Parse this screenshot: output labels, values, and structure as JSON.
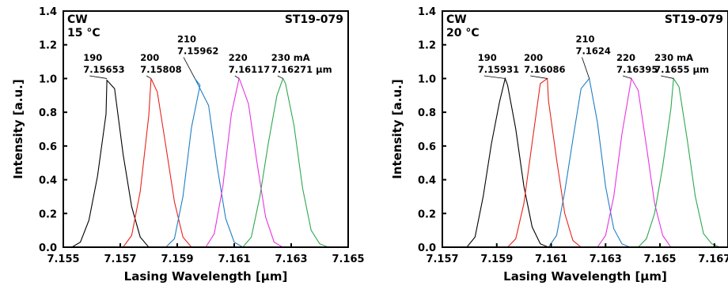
{
  "chart_data": [
    {
      "type": "line",
      "corner_left": [
        "CW",
        "15 °C"
      ],
      "corner_right": "ST19-079",
      "xlabel": "Lasing Wavelength [μm]",
      "ylabel": "Intensity  [a.u.]",
      "xlim": [
        7.155,
        7.165
      ],
      "ylim": [
        0.0,
        1.4
      ],
      "xticks": [
        "7.155",
        "7.157",
        "7.159",
        "7.161",
        "7.163",
        "7.165"
      ],
      "yticks": [
        "0.0",
        "0.2",
        "0.4",
        "0.6",
        "0.8",
        "1.0",
        "1.2",
        "1.4"
      ],
      "grid": false,
      "series": [
        {
          "color": "#000000",
          "peak_x": 7.15653,
          "points": [
            [
              7.155,
              0.0
            ],
            [
              7.1553,
              0.0
            ],
            [
              7.1556,
              0.03
            ],
            [
              7.1559,
              0.16
            ],
            [
              7.1562,
              0.42
            ],
            [
              7.1565,
              0.79
            ],
            [
              7.15653,
              0.99
            ],
            [
              7.1568,
              0.94
            ],
            [
              7.1571,
              0.55
            ],
            [
              7.1574,
              0.24
            ],
            [
              7.1577,
              0.06
            ],
            [
              7.158,
              0.0
            ],
            [
              7.165,
              0.0
            ]
          ]
        },
        {
          "color": "#e8231a",
          "peak_x": 7.15808,
          "points": [
            [
              7.155,
              0.0
            ],
            [
              7.1571,
              0.0
            ],
            [
              7.1574,
              0.07
            ],
            [
              7.1577,
              0.33
            ],
            [
              7.158,
              0.78
            ],
            [
              7.15808,
              1.0
            ],
            [
              7.1583,
              0.92
            ],
            [
              7.1586,
              0.6
            ],
            [
              7.1589,
              0.27
            ],
            [
              7.1592,
              0.06
            ],
            [
              7.1595,
              0.0
            ],
            [
              7.165,
              0.0
            ]
          ]
        },
        {
          "color": "#1f7fc4",
          "peak_x": 7.15962,
          "points": [
            [
              7.155,
              0.0
            ],
            [
              7.1586,
              0.0
            ],
            [
              7.1589,
              0.05
            ],
            [
              7.1592,
              0.3
            ],
            [
              7.1595,
              0.71
            ],
            [
              7.1598,
              0.96
            ],
            [
              7.15962,
              1.0
            ],
            [
              7.1601,
              0.84
            ],
            [
              7.1604,
              0.48
            ],
            [
              7.1607,
              0.17
            ],
            [
              7.161,
              0.03
            ],
            [
              7.1613,
              0.0
            ],
            [
              7.165,
              0.0
            ]
          ]
        },
        {
          "color": "#e834e0",
          "peak_x": 7.16117,
          "points": [
            [
              7.155,
              0.0
            ],
            [
              7.16,
              0.0
            ],
            [
              7.1603,
              0.08
            ],
            [
              7.1606,
              0.36
            ],
            [
              7.1609,
              0.79
            ],
            [
              7.16117,
              1.0
            ],
            [
              7.1612,
              0.99
            ],
            [
              7.1615,
              0.85
            ],
            [
              7.1618,
              0.5
            ],
            [
              7.1621,
              0.18
            ],
            [
              7.1624,
              0.03
            ],
            [
              7.1627,
              0.0
            ],
            [
              7.165,
              0.0
            ]
          ]
        },
        {
          "color": "#2ca84e",
          "peak_x": 7.16271,
          "points": [
            [
              7.155,
              0.0
            ],
            [
              7.1613,
              0.0
            ],
            [
              7.1616,
              0.06
            ],
            [
              7.1619,
              0.3
            ],
            [
              7.1622,
              0.62
            ],
            [
              7.1625,
              0.9
            ],
            [
              7.16271,
              1.0
            ],
            [
              7.1628,
              0.97
            ],
            [
              7.1631,
              0.72
            ],
            [
              7.1634,
              0.35
            ],
            [
              7.1637,
              0.1
            ],
            [
              7.164,
              0.02
            ],
            [
              7.1643,
              0.0
            ],
            [
              7.165,
              0.0
            ]
          ]
        }
      ],
      "annotations": [
        {
          "lines": [
            "190",
            "7.15653"
          ],
          "x": 7.1557,
          "y": 1.105
        },
        {
          "lines": [
            "200",
            "7.15808"
          ],
          "x": 7.1577,
          "y": 1.105
        },
        {
          "lines": [
            "210",
            "7.15962"
          ],
          "x": 7.159,
          "y": 1.215
        },
        {
          "lines": [
            "220",
            "7.16117"
          ],
          "x": 7.1608,
          "y": 1.105
        },
        {
          "lines": [
            "230 mA",
            "7.16271 μm"
          ],
          "x": 7.1623,
          "y": 1.105
        }
      ]
    },
    {
      "type": "line",
      "corner_left": [
        "CW",
        "20 °C"
      ],
      "corner_right": "ST19-079",
      "xlabel": "Lasing Wavelength [μm]",
      "ylabel": "Intensity  [a.u.]",
      "xlim": [
        7.157,
        7.1675
      ],
      "ylim": [
        0.0,
        1.4
      ],
      "xticks": [
        "7.157",
        "7.159",
        "7.161",
        "7.163",
        "7.165",
        "7.167"
      ],
      "yticks": [
        "0.0",
        "0.2",
        "0.4",
        "0.6",
        "0.8",
        "1.0",
        "1.2",
        "1.4"
      ],
      "grid": false,
      "series": [
        {
          "color": "#000000",
          "peak_x": 7.15931,
          "points": [
            [
              7.157,
              0.0
            ],
            [
              7.1579,
              0.0
            ],
            [
              7.1582,
              0.06
            ],
            [
              7.1585,
              0.3
            ],
            [
              7.1588,
              0.61
            ],
            [
              7.1591,
              0.86
            ],
            [
              7.15931,
              1.0
            ],
            [
              7.1594,
              0.96
            ],
            [
              7.1597,
              0.7
            ],
            [
              7.16,
              0.36
            ],
            [
              7.1603,
              0.12
            ],
            [
              7.1606,
              0.02
            ],
            [
              7.1609,
              0.0
            ],
            [
              7.1675,
              0.0
            ]
          ]
        },
        {
          "color": "#e8231a",
          "peak_x": 7.16086,
          "points": [
            [
              7.157,
              0.0
            ],
            [
              7.1594,
              0.0
            ],
            [
              7.1597,
              0.05
            ],
            [
              7.16,
              0.26
            ],
            [
              7.1603,
              0.62
            ],
            [
              7.1606,
              0.97
            ],
            [
              7.16086,
              1.0
            ],
            [
              7.1609,
              0.87
            ],
            [
              7.1612,
              0.52
            ],
            [
              7.1615,
              0.2
            ],
            [
              7.1618,
              0.04
            ],
            [
              7.1621,
              0.0
            ],
            [
              7.1675,
              0.0
            ]
          ]
        },
        {
          "color": "#1f7fc4",
          "peak_x": 7.1624,
          "points": [
            [
              7.157,
              0.0
            ],
            [
              7.1609,
              0.0
            ],
            [
              7.1612,
              0.07
            ],
            [
              7.1615,
              0.33
            ],
            [
              7.1618,
              0.64
            ],
            [
              7.1621,
              0.94
            ],
            [
              7.1624,
              1.0
            ],
            [
              7.1627,
              0.74
            ],
            [
              7.163,
              0.36
            ],
            [
              7.1633,
              0.11
            ],
            [
              7.1636,
              0.02
            ],
            [
              7.1639,
              0.0
            ],
            [
              7.1675,
              0.0
            ]
          ]
        },
        {
          "color": "#e834e0",
          "peak_x": 7.16395,
          "points": [
            [
              7.157,
              0.0
            ],
            [
              7.1627,
              0.0
            ],
            [
              7.163,
              0.07
            ],
            [
              7.1633,
              0.3
            ],
            [
              7.1636,
              0.67
            ],
            [
              7.16395,
              1.0
            ],
            [
              7.1642,
              0.93
            ],
            [
              7.1645,
              0.6
            ],
            [
              7.1648,
              0.26
            ],
            [
              7.1651,
              0.07
            ],
            [
              7.1654,
              0.0
            ],
            [
              7.1675,
              0.0
            ]
          ]
        },
        {
          "color": "#2ca84e",
          "peak_x": 7.1655,
          "points": [
            [
              7.157,
              0.0
            ],
            [
              7.1642,
              0.0
            ],
            [
              7.1645,
              0.05
            ],
            [
              7.1648,
              0.2
            ],
            [
              7.1651,
              0.48
            ],
            [
              7.1654,
              0.82
            ],
            [
              7.1655,
              1.0
            ],
            [
              7.1657,
              0.95
            ],
            [
              7.166,
              0.64
            ],
            [
              7.1663,
              0.3
            ],
            [
              7.1666,
              0.08
            ],
            [
              7.1669,
              0.02
            ],
            [
              7.1672,
              0.0
            ],
            [
              7.1675,
              0.0
            ]
          ]
        }
      ],
      "annotations": [
        {
          "lines": [
            "190",
            "7.15931"
          ],
          "x": 7.1583,
          "y": 1.105
        },
        {
          "lines": [
            "200",
            "7.16086"
          ],
          "x": 7.16,
          "y": 1.105
        },
        {
          "lines": [
            "210",
            "7.1624"
          ],
          "x": 7.1619,
          "y": 1.215
        },
        {
          "lines": [
            "220",
            "7.16395"
          ],
          "x": 7.1634,
          "y": 1.105
        },
        {
          "lines": [
            "230 mA",
            "7.1655  μm"
          ],
          "x": 7.1648,
          "y": 1.105
        }
      ]
    }
  ]
}
